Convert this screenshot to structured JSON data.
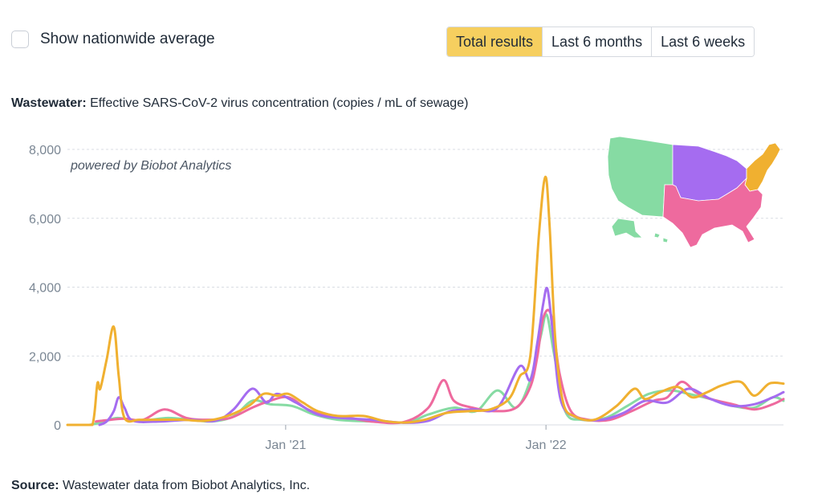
{
  "controls": {
    "nationwide_label": "Show nationwide average",
    "nationwide_checked": false,
    "ranges": [
      "Total results",
      "Last 6 months",
      "Last 6 weeks"
    ],
    "selected_range": 0
  },
  "header": {
    "title_bold": "Wastewater:",
    "title_rest": " Effective SARS-CoV-2 virus concentration (copies / mL of sewage)"
  },
  "footer": {
    "source_bold": "Source:",
    "source_rest": " Wastewater data from Biobot Analytics, Inc."
  },
  "watermark": "powered by Biobot Analytics",
  "colors": {
    "northeast": "#f0b030",
    "midwest": "#a56cf0",
    "south": "#ee6a9e",
    "west": "#86dba3",
    "grid": "#d9dde3"
  },
  "chart_data": {
    "type": "line",
    "y_ticks": [
      {
        "value": 0,
        "label": "0"
      },
      {
        "value": 2000,
        "label": "2,000"
      },
      {
        "value": 4000,
        "label": "4,000"
      },
      {
        "value": 6000,
        "label": "6,000"
      },
      {
        "value": 8000,
        "label": "8,000"
      }
    ],
    "x_ticks": [
      {
        "value": "2021-01-01",
        "label": "Jan '21"
      },
      {
        "value": "2022-01-01",
        "label": "Jan '22"
      }
    ],
    "xlim": [
      "2020-03-01",
      "2022-11-30"
    ],
    "ylim": [
      0,
      8000
    ],
    "grid": "horizontal",
    "legend": "map inset, top-right",
    "series": [
      {
        "color": "northeast",
        "points": [
          [
            "2020-03-01",
            0
          ],
          [
            "2020-03-20",
            0
          ],
          [
            "2020-04-05",
            0
          ],
          [
            "2020-04-12",
            1200
          ],
          [
            "2020-04-16",
            1050
          ],
          [
            "2020-04-25",
            1900
          ],
          [
            "2020-05-05",
            2850
          ],
          [
            "2020-05-12",
            1400
          ],
          [
            "2020-05-20",
            200
          ],
          [
            "2020-06-10",
            150
          ],
          [
            "2020-07-10",
            150
          ],
          [
            "2020-08-10",
            150
          ],
          [
            "2020-09-10",
            120
          ],
          [
            "2020-10-10",
            250
          ],
          [
            "2020-11-10",
            550
          ],
          [
            "2020-12-01",
            900
          ],
          [
            "2020-12-20",
            850
          ],
          [
            "2021-01-05",
            900
          ],
          [
            "2021-01-25",
            650
          ],
          [
            "2021-02-15",
            400
          ],
          [
            "2021-03-15",
            260
          ],
          [
            "2021-04-20",
            260
          ],
          [
            "2021-05-20",
            110
          ],
          [
            "2021-06-20",
            70
          ],
          [
            "2021-07-15",
            150
          ],
          [
            "2021-08-15",
            350
          ],
          [
            "2021-09-15",
            400
          ],
          [
            "2021-10-15",
            450
          ],
          [
            "2021-11-10",
            750
          ],
          [
            "2021-11-25",
            1400
          ],
          [
            "2021-12-10",
            2000
          ],
          [
            "2021-12-22",
            5500
          ],
          [
            "2021-12-31",
            7200
          ],
          [
            "2022-01-06",
            5800
          ],
          [
            "2022-01-14",
            2500
          ],
          [
            "2022-01-25",
            650
          ],
          [
            "2022-02-10",
            250
          ],
          [
            "2022-03-10",
            150
          ],
          [
            "2022-04-10",
            550
          ],
          [
            "2022-05-05",
            1050
          ],
          [
            "2022-05-20",
            750
          ],
          [
            "2022-06-10",
            950
          ],
          [
            "2022-07-05",
            1100
          ],
          [
            "2022-07-25",
            800
          ],
          [
            "2022-08-15",
            950
          ],
          [
            "2022-09-05",
            1150
          ],
          [
            "2022-10-01",
            1250
          ],
          [
            "2022-10-20",
            850
          ],
          [
            "2022-11-10",
            1200
          ],
          [
            "2022-11-30",
            1200
          ]
        ]
      },
      {
        "color": "midwest",
        "points": [
          [
            "2020-04-15",
            0
          ],
          [
            "2020-04-25",
            100
          ],
          [
            "2020-05-05",
            400
          ],
          [
            "2020-05-12",
            800
          ],
          [
            "2020-05-20",
            500
          ],
          [
            "2020-06-01",
            120
          ],
          [
            "2020-07-10",
            100
          ],
          [
            "2020-08-20",
            150
          ],
          [
            "2020-09-25",
            120
          ],
          [
            "2020-10-20",
            450
          ],
          [
            "2020-11-15",
            1050
          ],
          [
            "2020-12-05",
            650
          ],
          [
            "2020-12-20",
            900
          ],
          [
            "2021-01-15",
            650
          ],
          [
            "2021-02-15",
            300
          ],
          [
            "2021-03-20",
            200
          ],
          [
            "2021-05-01",
            150
          ],
          [
            "2021-06-15",
            60
          ],
          [
            "2021-07-20",
            120
          ],
          [
            "2021-08-20",
            400
          ],
          [
            "2021-09-20",
            450
          ],
          [
            "2021-10-25",
            500
          ],
          [
            "2021-11-25",
            1700
          ],
          [
            "2021-12-10",
            1300
          ],
          [
            "2021-12-20",
            2400
          ],
          [
            "2021-12-28",
            3500
          ],
          [
            "2022-01-03",
            3950
          ],
          [
            "2022-01-10",
            2800
          ],
          [
            "2022-01-22",
            700
          ],
          [
            "2022-02-15",
            200
          ],
          [
            "2022-03-20",
            150
          ],
          [
            "2022-04-20",
            350
          ],
          [
            "2022-05-20",
            700
          ],
          [
            "2022-06-20",
            650
          ],
          [
            "2022-07-20",
            1050
          ],
          [
            "2022-08-20",
            750
          ],
          [
            "2022-09-20",
            550
          ],
          [
            "2022-10-20",
            600
          ],
          [
            "2022-11-15",
            800
          ],
          [
            "2022-11-30",
            950
          ]
        ]
      },
      {
        "color": "south",
        "points": [
          [
            "2020-04-10",
            100
          ],
          [
            "2020-05-01",
            150
          ],
          [
            "2020-05-20",
            180
          ],
          [
            "2020-06-15",
            150
          ],
          [
            "2020-07-15",
            450
          ],
          [
            "2020-08-15",
            200
          ],
          [
            "2020-09-15",
            150
          ],
          [
            "2020-10-15",
            200
          ],
          [
            "2020-11-15",
            500
          ],
          [
            "2020-12-10",
            700
          ],
          [
            "2021-01-05",
            800
          ],
          [
            "2021-02-01",
            450
          ],
          [
            "2021-03-01",
            250
          ],
          [
            "2021-04-01",
            200
          ],
          [
            "2021-05-01",
            100
          ],
          [
            "2021-06-15",
            80
          ],
          [
            "2021-07-20",
            500
          ],
          [
            "2021-08-10",
            1300
          ],
          [
            "2021-08-25",
            700
          ],
          [
            "2021-09-20",
            500
          ],
          [
            "2021-10-20",
            400
          ],
          [
            "2021-11-20",
            500
          ],
          [
            "2021-12-10",
            1100
          ],
          [
            "2021-12-20",
            2000
          ],
          [
            "2021-12-28",
            3100
          ],
          [
            "2022-01-08",
            3200
          ],
          [
            "2022-01-20",
            1500
          ],
          [
            "2022-02-05",
            400
          ],
          [
            "2022-03-01",
            150
          ],
          [
            "2022-04-01",
            150
          ],
          [
            "2022-05-01",
            400
          ],
          [
            "2022-06-01",
            700
          ],
          [
            "2022-06-20",
            800
          ],
          [
            "2022-07-10",
            1250
          ],
          [
            "2022-07-30",
            950
          ],
          [
            "2022-08-20",
            750
          ],
          [
            "2022-09-20",
            600
          ],
          [
            "2022-10-20",
            450
          ],
          [
            "2022-11-15",
            600
          ],
          [
            "2022-11-30",
            750
          ]
        ]
      },
      {
        "color": "west",
        "points": [
          [
            "2020-04-01",
            0
          ],
          [
            "2020-04-20",
            80
          ],
          [
            "2020-05-10",
            200
          ],
          [
            "2020-06-10",
            120
          ],
          [
            "2020-07-20",
            200
          ],
          [
            "2020-08-20",
            150
          ],
          [
            "2020-09-20",
            100
          ],
          [
            "2020-10-20",
            250
          ],
          [
            "2020-11-15",
            700
          ],
          [
            "2020-12-10",
            600
          ],
          [
            "2021-01-10",
            550
          ],
          [
            "2021-02-10",
            300
          ],
          [
            "2021-03-15",
            150
          ],
          [
            "2021-05-01",
            100
          ],
          [
            "2021-06-20",
            80
          ],
          [
            "2021-07-20",
            300
          ],
          [
            "2021-08-25",
            500
          ],
          [
            "2021-09-25",
            400
          ],
          [
            "2021-10-25",
            1000
          ],
          [
            "2021-11-20",
            500
          ],
          [
            "2021-12-10",
            1300
          ],
          [
            "2021-12-25",
            2600
          ],
          [
            "2022-01-02",
            3200
          ],
          [
            "2022-01-12",
            2100
          ],
          [
            "2022-01-28",
            400
          ],
          [
            "2022-02-20",
            150
          ],
          [
            "2022-03-25",
            200
          ],
          [
            "2022-04-25",
            550
          ],
          [
            "2022-05-25",
            900
          ],
          [
            "2022-06-25",
            1000
          ],
          [
            "2022-07-20",
            900
          ],
          [
            "2022-08-20",
            750
          ],
          [
            "2022-09-20",
            550
          ],
          [
            "2022-10-20",
            500
          ],
          [
            "2022-11-15",
            800
          ],
          [
            "2022-11-30",
            700
          ]
        ]
      }
    ]
  },
  "map_regions": [
    "west",
    "midwest",
    "northeast",
    "south"
  ]
}
